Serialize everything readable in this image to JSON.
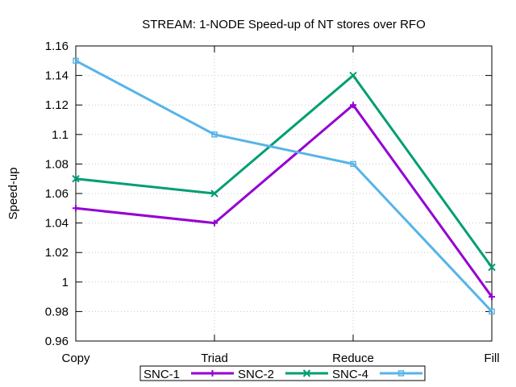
{
  "chart_data": {
    "type": "line",
    "title": "STREAM: 1-NODE Speed-up of NT stores over RFO",
    "xlabel": "",
    "ylabel": "Speed-up",
    "categories": [
      "Copy",
      "Triad",
      "Reduce",
      "Fill"
    ],
    "ylim": [
      0.96,
      1.16
    ],
    "yticks": [
      "0.96",
      "0.98",
      "1",
      "1.02",
      "1.04",
      "1.06",
      "1.08",
      "1.1",
      "1.12",
      "1.14",
      "1.16"
    ],
    "grid": true,
    "legend_position": "bottom",
    "series": [
      {
        "name": "SNC-1",
        "color": "#9400d3",
        "marker": "plus-icon",
        "values": [
          1.05,
          1.04,
          1.12,
          0.99
        ]
      },
      {
        "name": "SNC-2",
        "color": "#009e73",
        "marker": "cross-icon",
        "values": [
          1.07,
          1.06,
          1.14,
          1.01
        ]
      },
      {
        "name": "SNC-4",
        "color": "#56b4e9",
        "marker": "box-icon",
        "values": [
          1.15,
          1.1,
          1.08,
          0.98
        ]
      }
    ]
  }
}
